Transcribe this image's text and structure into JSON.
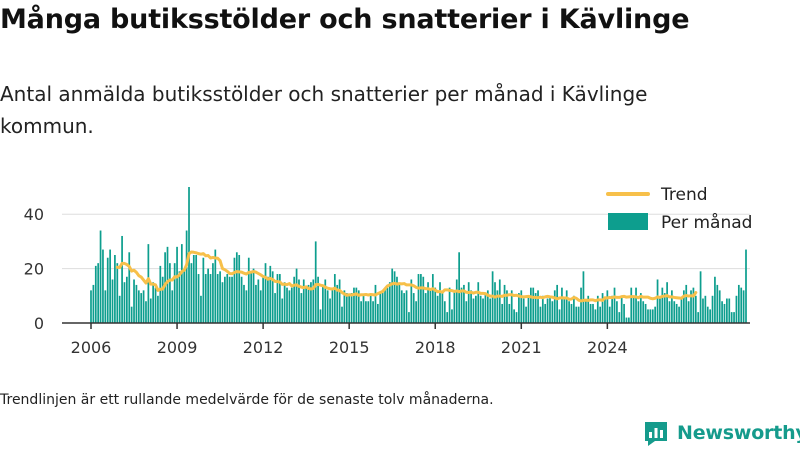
{
  "title": "Många butiksstölder och snatterier i Kävlinge",
  "subtitle": "Antal anmälda butiksstölder och snatterier per månad i Kävlinge kommun.",
  "footnote": "Trendlinjen är ett rullande medelvärde för de senaste tolv månaderna.",
  "logo_text": "Newsworthy",
  "colors": {
    "bar": "#0d9e8e",
    "trend": "#f7c04a",
    "axis": "#333333",
    "grid": "#dddddd",
    "logo": "#159b8c"
  },
  "chart_data": {
    "type": "bar",
    "title": "",
    "xlabel": "",
    "ylabel": "",
    "x_start": "2006-01",
    "x_ticks": [
      "2006",
      "2009",
      "2012",
      "2015",
      "2018",
      "2021",
      "2024"
    ],
    "y_ticks": [
      0,
      20,
      40
    ],
    "ylim": [
      0,
      50
    ],
    "legend": {
      "position": "top-right",
      "entries": [
        "Trend",
        "Per månad"
      ]
    },
    "series": [
      {
        "name": "Per månad",
        "type": "bar",
        "values": [
          12,
          14,
          21,
          22,
          34,
          27,
          12,
          24,
          27,
          16,
          25,
          22,
          10,
          32,
          15,
          17,
          26,
          6,
          16,
          14,
          12,
          11,
          12,
          8,
          29,
          9,
          15,
          13,
          10,
          21,
          17,
          26,
          28,
          22,
          12,
          22,
          28,
          19,
          29,
          19,
          34,
          50,
          22,
          25,
          25,
          18,
          10,
          24,
          18,
          20,
          18,
          22,
          27,
          18,
          19,
          15,
          17,
          18,
          17,
          17,
          24,
          26,
          25,
          17,
          14,
          12,
          24,
          19,
          20,
          14,
          16,
          12,
          17,
          22,
          17,
          21,
          19,
          11,
          18,
          18,
          9,
          15,
          13,
          12,
          13,
          17,
          20,
          16,
          11,
          16,
          13,
          14,
          15,
          16,
          30,
          17,
          5,
          14,
          16,
          12,
          9,
          13,
          18,
          14,
          16,
          6,
          12,
          11,
          10,
          11,
          13,
          13,
          12,
          8,
          10,
          8,
          8,
          10,
          8,
          14,
          7,
          11,
          12,
          13,
          13,
          15,
          20,
          19,
          17,
          14,
          12,
          11,
          12,
          4,
          16,
          11,
          8,
          18,
          18,
          17,
          11,
          15,
          12,
          18,
          13,
          10,
          15,
          11,
          8,
          4,
          13,
          5,
          12,
          16,
          26,
          13,
          14,
          8,
          15,
          12,
          9,
          10,
          15,
          10,
          9,
          11,
          12,
          9,
          19,
          15,
          12,
          16,
          7,
          14,
          12,
          7,
          12,
          5,
          4,
          11,
          12,
          9,
          6,
          10,
          13,
          13,
          11,
          12,
          6,
          10,
          7,
          9,
          10,
          8,
          12,
          14,
          5,
          13,
          9,
          12,
          8,
          7,
          10,
          6,
          6,
          13,
          19,
          8,
          10,
          7,
          7,
          5,
          10,
          6,
          11,
          9,
          12,
          6,
          10,
          13,
          8,
          4,
          10,
          7,
          2,
          2,
          13,
          10,
          13,
          8,
          11,
          8,
          7,
          5,
          5,
          5,
          6,
          16,
          9,
          13,
          11,
          15,
          8,
          12,
          8,
          7,
          6,
          9,
          12,
          14,
          8,
          12,
          13,
          10,
          4,
          19,
          9,
          10,
          6,
          5,
          10,
          17,
          14,
          12,
          8,
          7,
          9,
          9,
          4,
          4,
          10,
          14,
          13,
          12,
          27
        ]
      },
      {
        "name": "Trend",
        "type": "line",
        "values": [
          null,
          null,
          null,
          null,
          null,
          null,
          null,
          null,
          null,
          null,
          null,
          20.5,
          20.4,
          21.9,
          21.9,
          21.5,
          20.8,
          19.1,
          19.4,
          18.6,
          17.4,
          16.9,
          15.8,
          14.7,
          16.3,
          14.3,
          14.3,
          14.0,
          12.0,
          12.4,
          12.5,
          14.2,
          15.2,
          15.8,
          15.8,
          17.0,
          16.9,
          17.7,
          18.9,
          19.4,
          21.4,
          25.5,
          26.1,
          26.0,
          25.8,
          25.5,
          25.3,
          25.5,
          24.7,
          24.8,
          23.9,
          24.1,
          23.9,
          23.8,
          22.9,
          20.0,
          19.6,
          19.0,
          18.2,
          18.1,
          18.6,
          18.9,
          18.8,
          18.7,
          18.3,
          18.0,
          18.6,
          18.7,
          18.9,
          18.7,
          18.2,
          17.7,
          17.1,
          16.8,
          16.1,
          16.4,
          16.0,
          15.3,
          15.2,
          15.1,
          14.2,
          14.3,
          14.1,
          14.5,
          13.6,
          13.9,
          14.0,
          13.5,
          13.2,
          13.0,
          13.3,
          12.7,
          12.5,
          12.7,
          14.1,
          14.2,
          13.9,
          13.7,
          13.2,
          12.8,
          12.6,
          12.5,
          12.8,
          12.1,
          12.0,
          11.2,
          10.7,
          10.2,
          10.4,
          10.3,
          10.5,
          10.7,
          10.2,
          10.4,
          10.4,
          10.5,
          10.3,
          10.5,
          10.4,
          10.3,
          10.8,
          11.2,
          11.6,
          12.6,
          13.6,
          14.0,
          14.4,
          14.6,
          14.3,
          14.5,
          14.4,
          14.5,
          14.0,
          14.0,
          14.0,
          13.7,
          13.1,
          12.8,
          12.9,
          12.9,
          12.6,
          12.6,
          12.3,
          12.6,
          12.1,
          11.5,
          11.6,
          11.3,
          12.2,
          12.2,
          12.0,
          11.9,
          11.6,
          11.8,
          11.5,
          11.8,
          11.8,
          11.3,
          11.2,
          11.3,
          11.0,
          11.3,
          11.3,
          10.9,
          10.9,
          10.8,
          10.2,
          9.9,
          9.9,
          9.5,
          9.9,
          9.9,
          9.8,
          10.2,
          10.2,
          10.4,
          10.4,
          10.1,
          10.2,
          9.9,
          9.7,
          9.6,
          9.7,
          9.8,
          9.6,
          9.4,
          9.4,
          9.3,
          9.5,
          9.3,
          9.6,
          9.8,
          9.6,
          9.5,
          9.2,
          8.9,
          9.2,
          9.3,
          9.2,
          9.2,
          8.7,
          8.8,
          9.4,
          9.1,
          8.4,
          8.1,
          8.3,
          8.4,
          8.3,
          8.5,
          8.5,
          8.2,
          8.5,
          8.5,
          8.3,
          9.3,
          9.2,
          9.4,
          9.3,
          9.6,
          9.4,
          9.4,
          9.7,
          9.8,
          9.5,
          9.6,
          9.7,
          9.7,
          9.6,
          9.3,
          9.8,
          9.5,
          9.5,
          9.5,
          9.1,
          8.9,
          9.1,
          9.6,
          9.4,
          9.8,
          9.9,
          10.1,
          9.6,
          9.6,
          9.4,
          9.3,
          9.2,
          9.1,
          9.9,
          10.1,
          9.9,
          10.0,
          9.9,
          11.2
        ]
      }
    ]
  }
}
